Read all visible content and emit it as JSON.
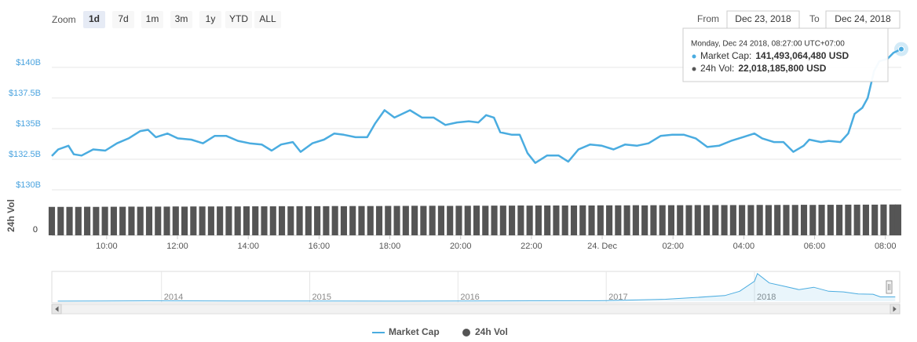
{
  "chart_data": {
    "type": "line",
    "zoom": {
      "label": "Zoom",
      "buttons": [
        "1d",
        "7d",
        "1m",
        "3m",
        "1y",
        "YTD",
        "ALL"
      ],
      "selected_index": 0
    },
    "range": {
      "from_label": "From",
      "from": "Dec 23, 2018",
      "to_label": "To",
      "to": "Dec 24, 2018"
    },
    "xlim": [
      8.45,
      32.45
    ],
    "xticks": [
      {
        "value": 10,
        "label": "10:00"
      },
      {
        "value": 12,
        "label": "12:00"
      },
      {
        "value": 14,
        "label": "14:00"
      },
      {
        "value": 16,
        "label": "16:00"
      },
      {
        "value": 18,
        "label": "18:00"
      },
      {
        "value": 20,
        "label": "20:00"
      },
      {
        "value": 22,
        "label": "22:00"
      },
      {
        "value": 24,
        "label": "24. Dec"
      },
      {
        "value": 26,
        "label": "02:00"
      },
      {
        "value": 28,
        "label": "04:00"
      },
      {
        "value": 30,
        "label": "06:00"
      },
      {
        "value": 32,
        "label": "08:00"
      }
    ],
    "ylim": [
      130,
      142.3
    ],
    "yticks": [
      {
        "value": 130,
        "label": "$130B"
      },
      {
        "value": 132.5,
        "label": "$132.5B"
      },
      {
        "value": 135,
        "label": "$135B"
      },
      {
        "value": 137.5,
        "label": "$137.5B"
      },
      {
        "value": 140,
        "label": "$140B"
      }
    ],
    "y2_label": "24h Vol",
    "y2lim": [
      0,
      28
    ],
    "y2ticks": [
      0
    ],
    "grid": true,
    "series": [
      {
        "name": "Market Cap",
        "color": "#4aace0",
        "type": "line",
        "x": [
          8.45,
          8.63,
          8.92,
          9.07,
          9.29,
          9.62,
          9.96,
          10.29,
          10.62,
          10.95,
          11.17,
          11.39,
          11.72,
          12.01,
          12.39,
          12.72,
          13.05,
          13.38,
          13.71,
          14.04,
          14.38,
          14.66,
          14.93,
          15.26,
          15.48,
          15.81,
          16.14,
          16.43,
          16.7,
          17.03,
          17.36,
          17.58,
          17.85,
          18.13,
          18.57,
          18.91,
          19.24,
          19.57,
          19.9,
          20.23,
          20.5,
          20.72,
          20.94,
          21.12,
          21.45,
          21.67,
          21.89,
          22.11,
          22.44,
          22.77,
          23.04,
          23.33,
          23.66,
          23.99,
          24.32,
          24.65,
          24.98,
          25.31,
          25.65,
          25.98,
          26.31,
          26.64,
          26.97,
          27.3,
          27.64,
          27.97,
          28.3,
          28.52,
          28.85,
          29.12,
          29.4,
          29.69,
          29.85,
          30.18,
          30.4,
          30.73,
          30.95,
          31.13,
          31.35,
          31.5,
          31.68,
          31.83,
          32.06,
          32.23,
          32.45
        ],
        "values": [
          132.76,
          133.3,
          133.6,
          132.9,
          132.8,
          133.3,
          133.2,
          133.8,
          134.2,
          134.8,
          134.9,
          134.3,
          134.6,
          134.2,
          134.1,
          133.8,
          134.4,
          134.4,
          134.0,
          133.8,
          133.7,
          133.2,
          133.7,
          133.9,
          133.1,
          133.8,
          134.1,
          134.6,
          134.5,
          134.3,
          134.3,
          135.4,
          136.5,
          135.9,
          136.5,
          135.9,
          135.9,
          135.3,
          135.5,
          135.6,
          135.5,
          136.1,
          135.9,
          134.7,
          134.5,
          134.5,
          133.0,
          132.2,
          132.8,
          132.8,
          132.3,
          133.3,
          133.7,
          133.6,
          133.3,
          133.7,
          133.6,
          133.8,
          134.4,
          134.5,
          134.5,
          134.2,
          133.5,
          133.6,
          134.0,
          134.3,
          134.6,
          134.2,
          133.9,
          133.9,
          133.1,
          133.6,
          134.1,
          133.9,
          134.0,
          133.9,
          134.6,
          136.2,
          136.7,
          137.5,
          139.7,
          140.5,
          140.7,
          141.2,
          141.49306448
        ]
      },
      {
        "name": "24h Vol",
        "color": "#555555",
        "type": "bar",
        "axis": "y2",
        "x": [
          8.45,
          8.7,
          8.95,
          9.2,
          9.45,
          9.7,
          9.95,
          10.2,
          10.45,
          10.7,
          10.95,
          11.2,
          11.45,
          11.7,
          11.95,
          12.2,
          12.45,
          12.7,
          12.95,
          13.2,
          13.45,
          13.7,
          13.95,
          14.2,
          14.45,
          14.7,
          14.95,
          15.2,
          15.45,
          15.7,
          15.95,
          16.2,
          16.45,
          16.7,
          16.95,
          17.2,
          17.45,
          17.7,
          17.95,
          18.2,
          18.45,
          18.7,
          18.95,
          19.2,
          19.45,
          19.7,
          19.95,
          20.2,
          20.45,
          20.7,
          20.95,
          21.2,
          21.45,
          21.7,
          21.95,
          22.2,
          22.45,
          22.7,
          22.95,
          23.2,
          23.45,
          23.7,
          23.95,
          24.2,
          24.45,
          24.7,
          24.95,
          25.2,
          25.45,
          25.7,
          25.95,
          26.2,
          26.45,
          26.7,
          26.95,
          27.2,
          27.45,
          27.7,
          27.95,
          28.2,
          28.45,
          28.7,
          28.95,
          29.2,
          29.45,
          29.7,
          29.95,
          30.2,
          30.45,
          30.7,
          30.95,
          31.2,
          31.45,
          31.7,
          31.95,
          32.2,
          32.45
        ],
        "values": [
          20.3,
          20.3,
          20.3,
          20.3,
          20.4,
          20.3,
          20.4,
          20.4,
          20.4,
          20.5,
          20.4,
          20.5,
          20.5,
          20.5,
          20.6,
          20.5,
          20.6,
          20.6,
          20.6,
          20.6,
          20.7,
          20.6,
          20.7,
          20.7,
          20.7,
          20.7,
          20.8,
          20.7,
          20.8,
          20.8,
          20.8,
          20.8,
          20.9,
          20.8,
          20.9,
          20.9,
          20.9,
          20.9,
          21.0,
          21.0,
          21.0,
          21.1,
          21.0,
          21.1,
          21.1,
          21.0,
          21.1,
          21.1,
          21.2,
          21.1,
          21.2,
          21.2,
          21.2,
          21.3,
          21.2,
          21.3,
          21.3,
          21.3,
          21.3,
          21.3,
          21.4,
          21.3,
          21.4,
          21.4,
          21.4,
          21.4,
          21.5,
          21.4,
          21.5,
          21.5,
          21.5,
          21.5,
          21.5,
          21.6,
          21.5,
          21.6,
          21.6,
          21.6,
          21.6,
          21.6,
          21.7,
          21.6,
          21.7,
          21.7,
          21.7,
          21.8,
          21.7,
          21.8,
          21.8,
          21.8,
          21.9,
          21.9,
          21.9,
          21.9,
          22.0,
          22.0,
          22.0181858
        ]
      }
    ],
    "tooltip": {
      "date": "Monday, Dec 24 2018, 08:27:00 UTC+07:00",
      "items": [
        {
          "label": "Market Cap:",
          "value": "141,493,064,480 USD"
        },
        {
          "label": "24h Vol:",
          "value": "22,018,185,800 USD"
        }
      ]
    },
    "navigator": {
      "xlim": [
        2013.26,
        2018.98
      ],
      "ylim": [
        0,
        850
      ],
      "xticks": [
        2014,
        2015,
        2016,
        2017,
        2018
      ],
      "x": [
        2013.3,
        2013.9,
        2014.5,
        2015,
        2015.5,
        2016,
        2016.5,
        2017,
        2017.4,
        2017.6,
        2017.8,
        2017.9,
        2018.0,
        2018.02,
        2018.1,
        2018.2,
        2018.3,
        2018.4,
        2018.5,
        2018.6,
        2018.7,
        2018.8,
        2018.85,
        2018.95
      ],
      "values": [
        1.5,
        12,
        8,
        4,
        3.5,
        7,
        12,
        17,
        60,
        110,
        170,
        300,
        600,
        830,
        550,
        450,
        350,
        420,
        300,
        280,
        220,
        210,
        130,
        130
      ]
    }
  }
}
